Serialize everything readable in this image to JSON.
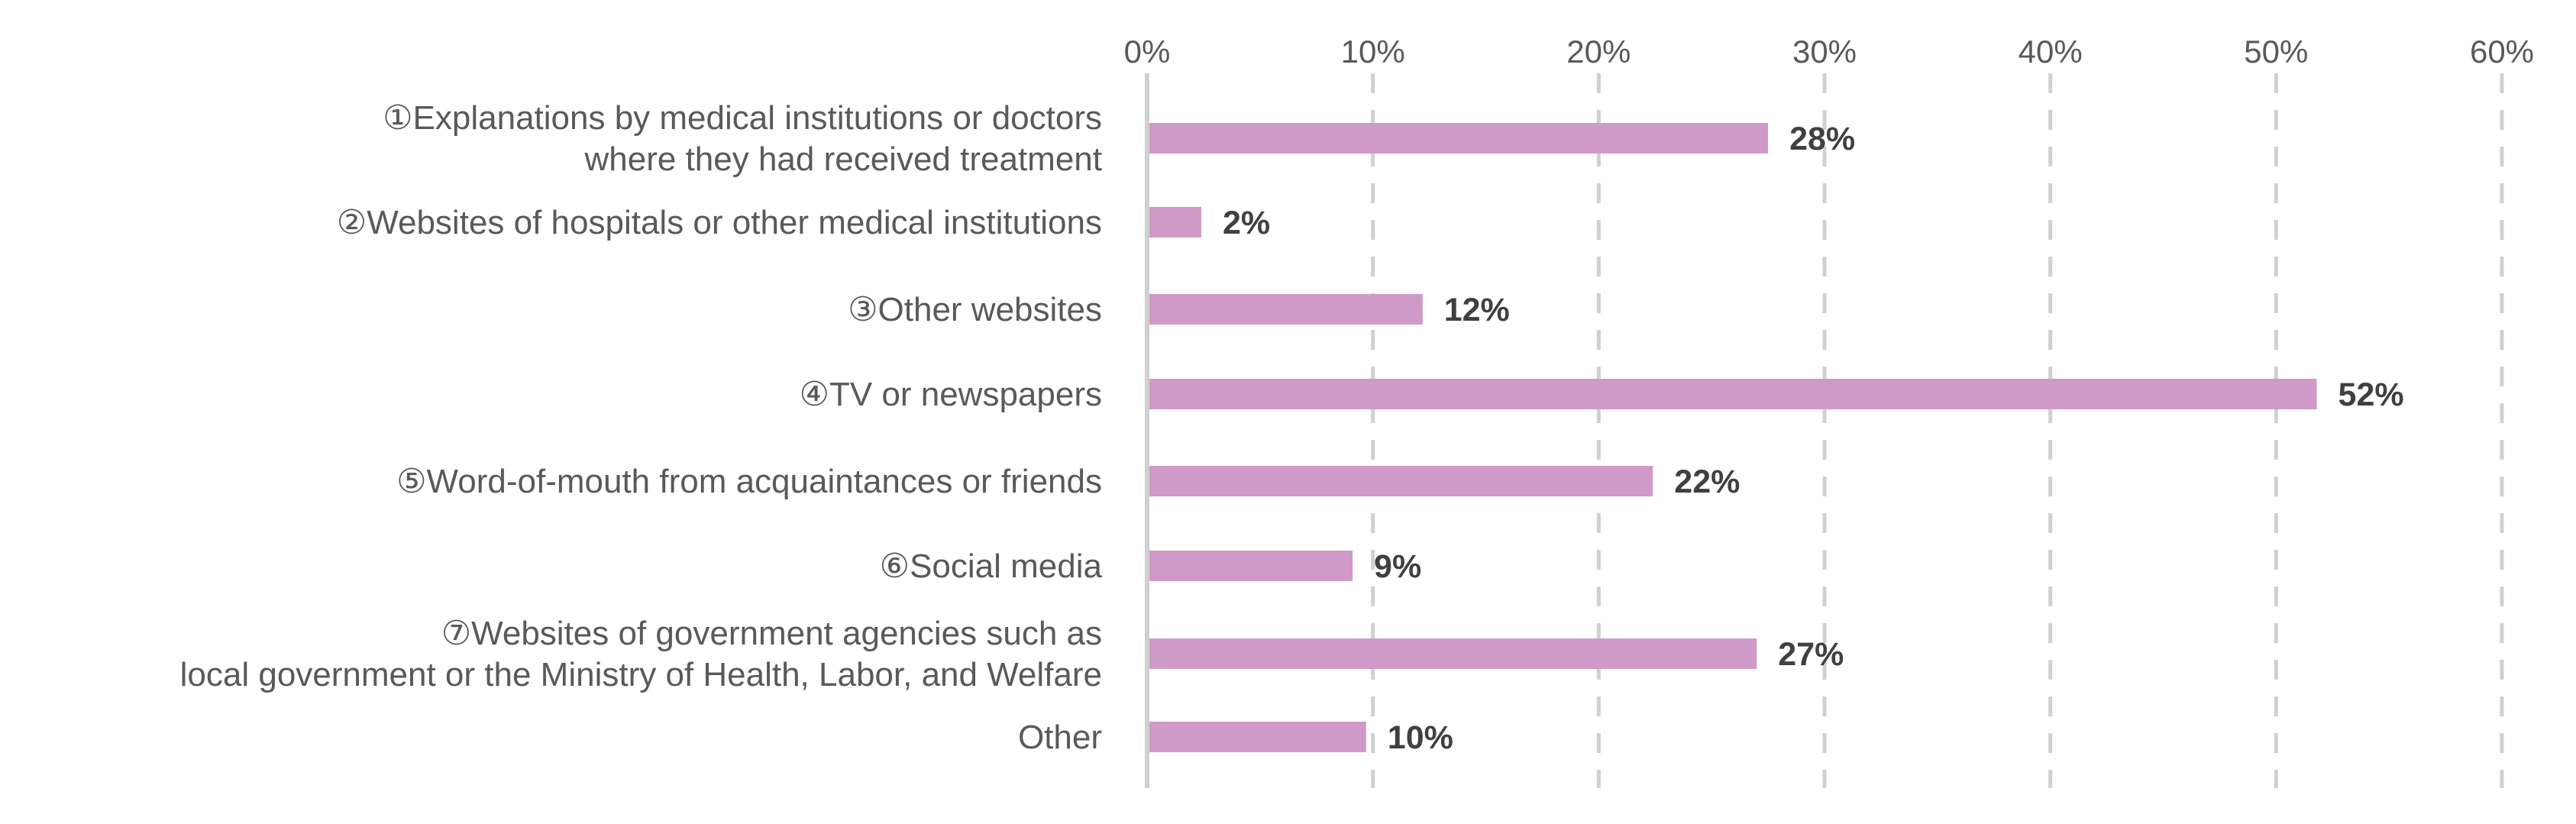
{
  "chart_data": {
    "type": "bar",
    "orientation": "horizontal",
    "title": "",
    "xlabel": "",
    "ylabel": "",
    "xlim": [
      0,
      60
    ],
    "ticks": [
      0,
      10,
      20,
      30,
      40,
      50,
      60
    ],
    "tick_labels": [
      "0%",
      "10%",
      "20%",
      "30%",
      "40%",
      "50%",
      "60%"
    ],
    "axis_position": "top",
    "grid": true,
    "legend": "none",
    "bar_color": "#cf9ac8",
    "categories": [
      [
        "①Explanations by medical institutions or doctors",
        "where they had received treatment"
      ],
      [
        "②Websites of hospitals or other medical institutions"
      ],
      [
        "③Other websites"
      ],
      [
        "④TV or newspapers"
      ],
      [
        "⑤Word-of-mouth from acquaintances or friends"
      ],
      [
        "⑥Social media"
      ],
      [
        "⑦Websites of government agencies such as",
        "local government or the Ministry of Health, Labor, and Welfare"
      ],
      [
        "Other"
      ]
    ],
    "values": [
      27.5,
      2.4,
      12.2,
      51.8,
      22.4,
      9.1,
      27.0,
      9.7
    ],
    "data_labels": [
      "28%",
      "2%",
      "12%",
      "52%",
      "22%",
      "9%",
      "27%",
      "10%"
    ]
  }
}
